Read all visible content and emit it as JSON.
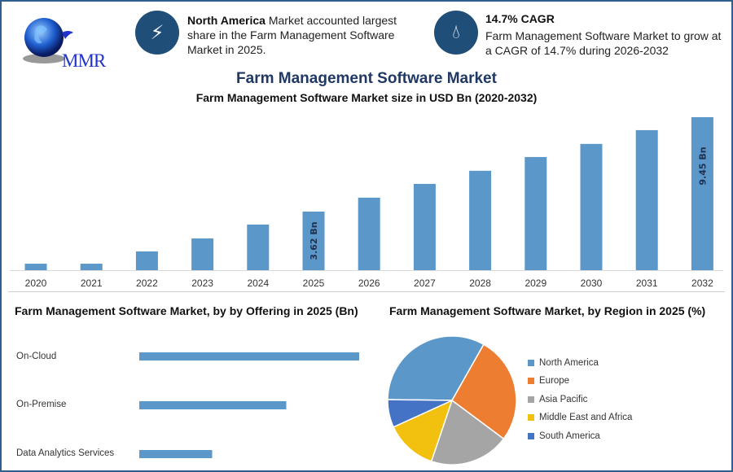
{
  "logo": {
    "text": "MMR"
  },
  "highlights": [
    {
      "icon": "lightning-icon",
      "bold": "North America",
      "text": " Market accounted largest share in the Farm Management Software Market in 2025."
    },
    {
      "icon": "growth-drop-icon",
      "bold": "14.7% CAGR",
      "text": "Farm Management Software Market to grow at a CAGR of 14.7% during 2026-2032"
    }
  ],
  "header": {
    "title": "Farm Management Software Market",
    "subtitle": "Farm Management Software Market size in USD Bn (2020-2032)"
  },
  "colors": {
    "bar": "#5b97c9",
    "title": "#1f3864",
    "icon_bg": "#1f4e79"
  },
  "chart_data": [
    {
      "type": "bar",
      "title": "Farm Management Software Market size in USD Bn (2020-2032)",
      "categories": [
        "2020",
        "2021",
        "2022",
        "2023",
        "2024",
        "2025",
        "2026",
        "2027",
        "2028",
        "2029",
        "2030",
        "2031",
        "2032"
      ],
      "values": [
        0.4,
        0.4,
        1.16,
        1.96,
        2.82,
        3.62,
        4.48,
        5.33,
        6.14,
        6.99,
        7.8,
        8.65,
        9.45
      ],
      "data_labels": {
        "2025": "3.62 Bn",
        "2032": "9.45 Bn"
      },
      "ylim": [
        0,
        9.45
      ],
      "grid": false
    },
    {
      "type": "bar",
      "orientation": "horizontal",
      "title": "Farm Management Software Market, by by Offering in 2025 (Bn)",
      "categories": [
        "On-Cloud",
        "On-Premise",
        "Data Analytics Services"
      ],
      "values": [
        1.81,
        1.21,
        0.6
      ],
      "grid": false
    },
    {
      "type": "pie",
      "title": "Farm Management Software Market, by Region in 2025 (%)",
      "categories": [
        "North America",
        "Europe",
        "Asia Pacific",
        "Middle East and Africa",
        "South America"
      ],
      "values": [
        33,
        27,
        20,
        13,
        7
      ],
      "colors": [
        "#5b97c9",
        "#ed7d31",
        "#a5a5a5",
        "#f2c00f",
        "#4472c4"
      ],
      "legend": "right"
    }
  ]
}
